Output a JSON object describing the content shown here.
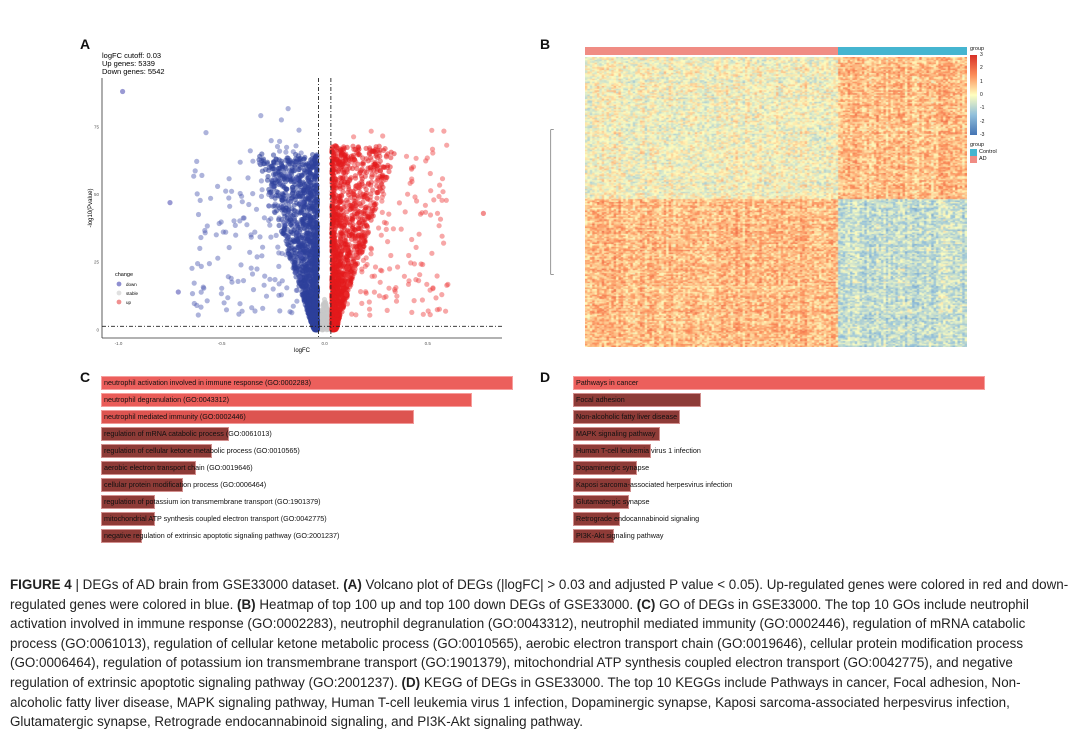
{
  "figure": {
    "panel_labels": [
      "A",
      "B",
      "C",
      "D"
    ],
    "caption": [
      {
        "text": "FIGURE 4",
        "bold": true
      },
      {
        "text": " | DEGs of AD brain from GSE33000 dataset. ",
        "bold": false
      },
      {
        "text": "(A)",
        "bold": true
      },
      {
        "text": " Volcano plot of DEGs (|logFC| > 0.03 and adjusted P value < 0.05). Up-regulated genes were colored in red and down-regulated genes were colored in blue. ",
        "bold": false
      },
      {
        "text": "(B)",
        "bold": true
      },
      {
        "text": " Heatmap of top 100 up and top 100 down DEGs of GSE33000. ",
        "bold": false
      },
      {
        "text": "(C)",
        "bold": true
      },
      {
        "text": " GO of DEGs in GSE33000. The top 10 GOs include neutrophil activation involved in immune response (GO:0002283), neutrophil degranulation (GO:0043312), neutrophil mediated immunity (GO:0002446), regulation of mRNA catabolic process (GO:0061013), regulation of cellular ketone metabolic process (GO:0010565), aerobic electron transport chain (GO:0019646), cellular protein modification process (GO:0006464), regulation of potassium ion transmembrane transport (GO:1901379), mitochondrial ATP synthesis coupled electron transport (GO:0042775), and negative regulation of extrinsic apoptotic signaling pathway (GO:2001237). ",
        "bold": false
      },
      {
        "text": "(D)",
        "bold": true
      },
      {
        "text": " KEGG of DEGs in GSE33000. The top 10 KEGGs include Pathways in cancer, Focal adhesion, Non-alcoholic fatty liver disease, MAPK signaling pathway, Human T-cell leukemia virus 1 infection, Dopaminergic synapse, Kaposi sarcoma-associated herpesvirus infection, Glutamatergic synapse, Retrograde endocannabinoid signaling, and PI3K-Akt signaling pathway.",
        "bold": false
      }
    ]
  },
  "chart_data": [
    {
      "type": "scatter",
      "panel": "A",
      "annotations": [
        "logFC cutoff: 0.03",
        "Up genes: 5339",
        "Down genes: 5542"
      ],
      "xlabel": "logFC",
      "ylabel": "-log10(Pvalue)",
      "x_ticks": [
        "-1.0",
        "-0.5",
        "0.0",
        "0.5"
      ],
      "x_tick_values": [
        -1.0,
        -0.5,
        0.0,
        0.5
      ],
      "y_ticks": [
        "0",
        "25",
        "50",
        "75"
      ],
      "y_tick_values": [
        0,
        25,
        50,
        75
      ],
      "xlim": [
        -1.08,
        0.86
      ],
      "ylim": [
        -3,
        93
      ],
      "vlines": [
        -0.03,
        0.03
      ],
      "hline": 1.3,
      "legend": {
        "title": "change",
        "position": "bottom-left",
        "entries": [
          {
            "name": "down",
            "color": "#8f8fd0"
          },
          {
            "name": "stable",
            "color": "#e0e0e0"
          },
          {
            "name": "up",
            "color": "#f09090"
          }
        ]
      },
      "series": [
        {
          "name": "down",
          "color": "#2e3f9a",
          "count": 5542
        },
        {
          "name": "stable",
          "color": "#c8c8c8"
        },
        {
          "name": "up",
          "color": "#e31a1c",
          "count": 5339
        }
      ],
      "grid": false
    },
    {
      "type": "heatmap",
      "panel": "B",
      "color_scale": {
        "title": "group",
        "ticks": [
          "3",
          "2",
          "1",
          "0",
          "-1",
          "-2",
          "-3"
        ],
        "low": "#4575b4",
        "mid": "#ffffbf",
        "high": "#d73027"
      },
      "group_legend": {
        "title": "group",
        "entries": [
          {
            "name": "Control",
            "color": "#45b5d0"
          },
          {
            "name": "AD",
            "color": "#f08c84"
          }
        ]
      },
      "rows": {
        "up": 100,
        "down": 100
      },
      "grid": false
    },
    {
      "type": "bar",
      "panel": "C",
      "orientation": "horizontal",
      "categories": [
        "neutrophil activation involved in immune response (GO:0002283)",
        "neutrophil degranulation (GO:0043312)",
        "neutrophil mediated immunity (GO:0002446)",
        "regulation of mRNA catabolic process (GO:0061013)",
        "regulation of cellular ketone metabolic process (GO:0010565)",
        "aerobic electron transport chain (GO:0019646)",
        "cellular protein modification process (GO:0006464)",
        "regulation of potassium ion transmembrane transport (GO:1901379)",
        "mitochondrial ATP synthesis coupled electron transport (GO:0042775)",
        "negative regulation of extrinsic apoptotic signaling pathway (GO:2001237)"
      ],
      "values": [
        1.0,
        0.9,
        0.76,
        0.31,
        0.27,
        0.23,
        0.2,
        0.13,
        0.13,
        0.1
      ],
      "colors": [
        "#ec5f5c",
        "#ea5c58",
        "#dd5450",
        "#8e3b37",
        "#8e3b37",
        "#8e3b37",
        "#8e3b37",
        "#8e3b37",
        "#8e3b37",
        "#8e3b37"
      ]
    },
    {
      "type": "bar",
      "panel": "D",
      "orientation": "horizontal",
      "categories": [
        "Pathways in cancer",
        "Focal adhesion",
        "Non-alcoholic fatty liver disease",
        "MAPK signaling pathway",
        "Human T-cell leukemia virus 1 infection",
        "Dopaminergic synapse",
        "Kaposi sarcoma-associated herpesvirus infection",
        "Glutamatergic synapse",
        "Retrograde endocannabinoid signaling",
        "PI3K-Akt signaling pathway"
      ],
      "values": [
        1.0,
        0.31,
        0.26,
        0.21,
        0.19,
        0.155,
        0.14,
        0.135,
        0.115,
        0.1
      ],
      "colors": [
        "#ec5f5c",
        "#8e3b37",
        "#8e3b37",
        "#8e3b37",
        "#8e3b37",
        "#8e3b37",
        "#8e3b37",
        "#8e3b37",
        "#8e3b37",
        "#8e3b37"
      ]
    }
  ]
}
